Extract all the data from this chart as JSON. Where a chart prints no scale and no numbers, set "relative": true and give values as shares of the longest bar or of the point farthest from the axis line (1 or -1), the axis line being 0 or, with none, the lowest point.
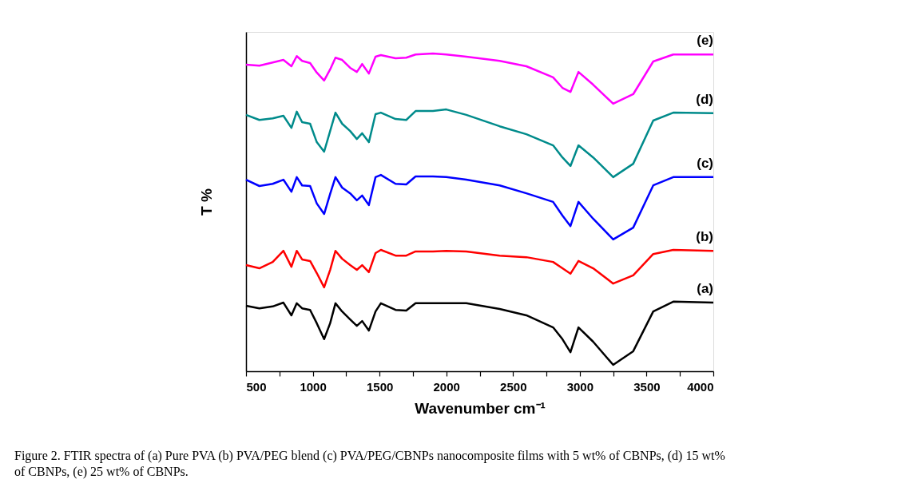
{
  "chart_data": {
    "type": "line",
    "relative": true,
    "xlabel": "Wavenumber cm⁻¹",
    "ylabel": "T %",
    "x": [
      500,
      600,
      700,
      780,
      840,
      880,
      920,
      980,
      1030,
      1085,
      1130,
      1170,
      1220,
      1280,
      1330,
      1370,
      1420,
      1470,
      1510,
      1620,
      1700,
      1770,
      1900,
      2000,
      2150,
      2400,
      2600,
      2800,
      2870,
      2930,
      2990,
      3100,
      3250,
      3400,
      3550,
      3700,
      4000
    ],
    "xlim": [
      500,
      4000
    ],
    "xticks": [
      500,
      {
        "value": 750,
        "label": null
      },
      1000,
      {
        "value": 1250,
        "label": null
      },
      1500,
      {
        "value": 1750,
        "label": null
      },
      2000,
      {
        "value": 2250,
        "label": null
      },
      2500,
      {
        "value": 2750,
        "label": null
      },
      3000,
      {
        "value": 3250,
        "label": null
      },
      3500,
      {
        "value": 3750,
        "label": null
      },
      4000
    ],
    "grid": false,
    "legend": false,
    "marker": "none",
    "line_style": "solid",
    "series": [
      {
        "name": "(a)",
        "color": "#000000",
        "values": [
          0.206,
          0.198,
          0.204,
          0.216,
          0.176,
          0.214,
          0.198,
          0.193,
          0.151,
          0.101,
          0.151,
          0.214,
          0.188,
          0.163,
          0.143,
          0.158,
          0.128,
          0.188,
          0.214,
          0.193,
          0.191,
          0.214,
          0.214,
          0.214,
          0.214,
          0.196,
          0.176,
          0.138,
          0.101,
          0.06,
          0.138,
          0.093,
          0.02,
          0.063,
          0.188,
          0.219,
          0.216
        ]
      },
      {
        "name": "(b)",
        "color": "#ff0000",
        "values": [
          0.334,
          0.324,
          0.344,
          0.379,
          0.329,
          0.379,
          0.352,
          0.347,
          0.309,
          0.264,
          0.319,
          0.379,
          0.354,
          0.334,
          0.319,
          0.334,
          0.312,
          0.372,
          0.382,
          0.364,
          0.364,
          0.377,
          0.377,
          0.379,
          0.377,
          0.364,
          0.359,
          0.344,
          0.324,
          0.307,
          0.347,
          0.324,
          0.276,
          0.302,
          0.369,
          0.382,
          0.379
        ]
      },
      {
        "name": "(c)",
        "color": "#0000ff",
        "values": [
          0.603,
          0.583,
          0.59,
          0.603,
          0.565,
          0.611,
          0.585,
          0.583,
          0.528,
          0.495,
          0.558,
          0.611,
          0.578,
          0.56,
          0.538,
          0.553,
          0.523,
          0.611,
          0.618,
          0.59,
          0.588,
          0.613,
          0.613,
          0.611,
          0.603,
          0.585,
          0.56,
          0.533,
          0.49,
          0.457,
          0.533,
          0.48,
          0.415,
          0.452,
          0.585,
          0.611,
          0.611
        ]
      },
      {
        "name": "(d)",
        "color": "#008b8b",
        "values": [
          0.807,
          0.791,
          0.796,
          0.804,
          0.766,
          0.817,
          0.784,
          0.779,
          0.721,
          0.691,
          0.756,
          0.814,
          0.779,
          0.756,
          0.731,
          0.749,
          0.721,
          0.809,
          0.814,
          0.794,
          0.791,
          0.819,
          0.819,
          0.824,
          0.807,
          0.771,
          0.746,
          0.711,
          0.673,
          0.646,
          0.711,
          0.673,
          0.611,
          0.653,
          0.789,
          0.814,
          0.812
        ]
      },
      {
        "name": "(e)",
        "color": "#ff00ff",
        "values": [
          0.965,
          0.962,
          0.972,
          0.98,
          0.96,
          0.992,
          0.977,
          0.97,
          0.94,
          0.915,
          0.95,
          0.987,
          0.98,
          0.955,
          0.942,
          0.967,
          0.937,
          0.99,
          0.995,
          0.985,
          0.987,
          0.997,
          1.0,
          0.997,
          0.99,
          0.977,
          0.96,
          0.925,
          0.892,
          0.879,
          0.942,
          0.902,
          0.842,
          0.872,
          0.975,
          0.997,
          0.997
        ]
      }
    ],
    "annotations": [
      "Figure 2. FTIR spectra of (a) Pure PVA (b) PVA/PEG blend (c) PVA/PEG/CBNPs nanocomposite films with 5 wt% of CBNPs, (d) 15 wt% of CBNPs, (e) 25 wt% of CBNPs."
    ]
  }
}
